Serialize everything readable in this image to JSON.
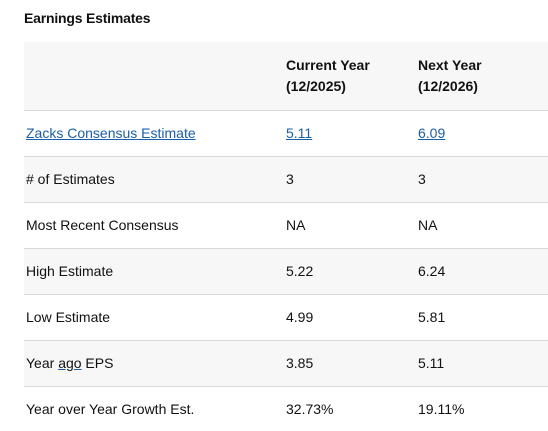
{
  "title": "Earnings Estimates",
  "header": {
    "col2_line1": "Current Year",
    "col2_line2": "(12/2025)",
    "col3_line1": "Next Year",
    "col3_line2": "(12/2026)"
  },
  "rows": [
    {
      "label": "Zacks Consensus Estimate",
      "current": "5.11",
      "next": "6.09"
    },
    {
      "label": "# of Estimates",
      "current": "3",
      "next": "3"
    },
    {
      "label": "Most Recent Consensus",
      "current": "NA",
      "next": "NA"
    },
    {
      "label": "High Estimate",
      "current": "5.22",
      "next": "6.24"
    },
    {
      "label": "Low Estimate",
      "current": "4.99",
      "next": "5.81"
    },
    {
      "label_pre": "Year ",
      "label_ago": "ago",
      "label_post": " EPS",
      "current": "3.85",
      "next": "5.11"
    },
    {
      "label": "Year over Year Growth Est.",
      "current": "32.73%",
      "next": "19.11%"
    }
  ],
  "colors": {
    "link": "#1a5ea8",
    "stripe": "#f7f7f7",
    "divider": "#d9d9d9"
  }
}
